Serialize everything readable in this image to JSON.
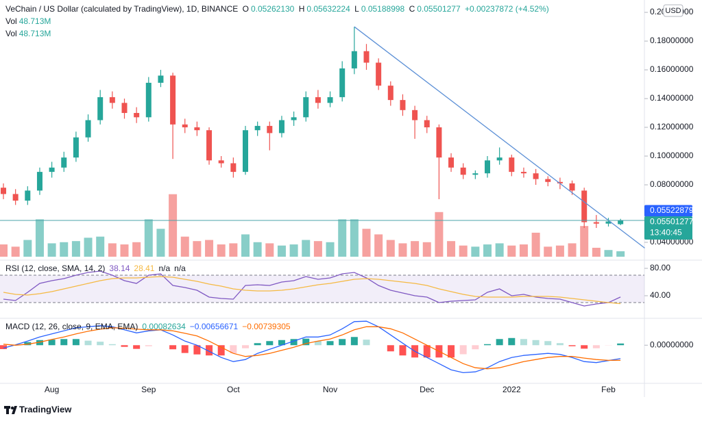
{
  "header": {
    "symbol": "VeChain / US Dollar (calculated by TradingView), 1D, BINANCE",
    "ohlc": [
      {
        "label": "O",
        "value": "0.05262130"
      },
      {
        "label": "H",
        "value": "0.05632224"
      },
      {
        "label": "L",
        "value": "0.05188998"
      },
      {
        "label": "C",
        "value": "0.05501277"
      }
    ],
    "change": "+0.00237872 (+4.52%)",
    "volume_rows": [
      {
        "label": "Vol",
        "value": "48.713M"
      },
      {
        "label": "Vol",
        "value": "48.713M"
      }
    ]
  },
  "currency": "USD",
  "footer": "TradingView",
  "chart_data": [
    {
      "type": "candlestick",
      "categories": [
        null,
        null,
        null,
        null,
        "Aug",
        null,
        null,
        null,
        null,
        null,
        null,
        null,
        "Sep",
        null,
        null,
        null,
        null,
        null,
        null,
        "Oct",
        null,
        null,
        null,
        null,
        null,
        null,
        null,
        "Nov",
        null,
        null,
        null,
        null,
        null,
        null,
        null,
        "Dec",
        null,
        null,
        null,
        null,
        null,
        null,
        "2022",
        null,
        null,
        null,
        null,
        null,
        null,
        null,
        "Feb",
        null
      ],
      "open": [
        0.078,
        0.0736,
        0.069,
        0.076,
        0.089,
        0.092,
        0.099,
        0.113,
        0.125,
        0.141,
        0.137,
        0.13,
        0.127,
        0.151,
        0.156,
        0.122,
        0.12,
        0.118,
        0.097,
        0.095,
        0.089,
        0.118,
        0.121,
        0.116,
        0.125,
        0.127,
        0.141,
        0.137,
        0.141,
        0.161,
        0.173,
        0.165,
        0.149,
        0.139,
        0.132,
        0.125,
        0.12,
        0.099,
        0.092,
        0.087,
        0.088,
        0.097,
        0.099,
        0.089,
        0.088,
        0.084,
        0.082,
        0.081,
        0.076,
        0.054,
        0.053,
        0.0526213
      ],
      "high": [
        0.081,
        0.077,
        0.079,
        0.092,
        0.096,
        0.103,
        0.117,
        0.129,
        0.146,
        0.145,
        0.14,
        0.134,
        0.155,
        0.16,
        0.158,
        0.126,
        0.124,
        0.12,
        0.1,
        0.099,
        0.121,
        0.124,
        0.124,
        0.128,
        0.131,
        0.145,
        0.146,
        0.145,
        0.166,
        0.19,
        0.178,
        0.168,
        0.152,
        0.143,
        0.135,
        0.128,
        0.122,
        0.102,
        0.095,
        0.09,
        0.1,
        0.106,
        0.101,
        0.092,
        0.091,
        0.086,
        0.085,
        0.083,
        0.078,
        0.059,
        0.057,
        0.05632224
      ],
      "low": [
        0.07,
        0.066,
        0.066,
        0.073,
        0.085,
        0.089,
        0.096,
        0.11,
        0.122,
        0.133,
        0.126,
        0.123,
        0.124,
        0.148,
        0.098,
        0.116,
        0.114,
        0.094,
        0.092,
        0.085,
        0.087,
        0.114,
        0.104,
        0.113,
        0.121,
        0.124,
        0.133,
        0.134,
        0.138,
        0.157,
        0.16,
        0.146,
        0.135,
        0.128,
        0.112,
        0.116,
        0.07,
        0.089,
        0.084,
        0.084,
        0.085,
        0.094,
        0.086,
        0.085,
        0.08,
        0.079,
        0.077,
        0.073,
        0.05,
        0.05,
        0.051,
        0.05188998
      ],
      "close": [
        0.0736,
        0.069,
        0.076,
        0.089,
        0.092,
        0.099,
        0.113,
        0.125,
        0.141,
        0.137,
        0.13,
        0.127,
        0.151,
        0.156,
        0.122,
        0.12,
        0.118,
        0.097,
        0.095,
        0.089,
        0.118,
        0.121,
        0.116,
        0.125,
        0.127,
        0.141,
        0.137,
        0.141,
        0.161,
        0.173,
        0.165,
        0.149,
        0.139,
        0.132,
        0.125,
        0.12,
        0.099,
        0.092,
        0.087,
        0.088,
        0.097,
        0.099,
        0.089,
        0.088,
        0.084,
        0.082,
        0.081,
        0.076,
        0.054,
        0.053,
        0.0545,
        0.05501277
      ],
      "up_color": "#26a69a",
      "down_color": "#ef5350",
      "ylim": [
        0.0276,
        0.2086
      ],
      "yticks": [
        {
          "value": 0.04,
          "label": "0.04000000"
        },
        {
          "value": 0.08,
          "label": "0.08000000"
        },
        {
          "value": 0.1,
          "label": "0.10000000"
        },
        {
          "value": 0.12,
          "label": "0.12000000"
        },
        {
          "value": 0.14,
          "label": "0.14000000"
        },
        {
          "value": 0.16,
          "label": "0.16000000"
        },
        {
          "value": 0.18,
          "label": "0.18000000"
        },
        {
          "value": 0.2,
          "label": "0.20000000"
        }
      ],
      "volume": {
        "values": [
          110,
          90,
          150,
          335,
          120,
          130,
          140,
          170,
          180,
          120,
          110,
          130,
          335,
          250,
          560,
          180,
          140,
          150,
          110,
          120,
          200,
          130,
          120,
          100,
          110,
          150,
          140,
          130,
          335,
          335,
          250,
          200,
          150,
          120,
          140,
          130,
          400,
          140,
          100,
          90,
          110,
          120,
          100,
          110,
          215,
          90,
          100,
          120,
          275,
          80,
          60,
          48.713
        ],
        "ylim": [
          0,
          2300
        ],
        "up_color": "#26a69a",
        "down_color": "#ef5350",
        "opacity": 0.55
      },
      "trendline": {
        "x": [
          29,
          53
        ],
        "y": [
          0.19,
          0.036
        ],
        "color": "#5b8fd6"
      },
      "price_lines": [
        {
          "value": 0.05522879,
          "label": "0.05522879",
          "color": "#2962ff",
          "line_color": "#4ba3a8"
        },
        {
          "value": 0.05501277,
          "label": "0.05501277",
          "countdown": "13:40:45",
          "color": "#26a69a"
        }
      ]
    },
    {
      "type": "line",
      "title": "RSI (12, close, SMA, 14, 2)",
      "legend_values": [
        "38.14",
        "28.41",
        "n/a",
        "n/a"
      ],
      "series": [
        {
          "color": "#7e57c2",
          "values": [
            35,
            33,
            45,
            58,
            62,
            65,
            70,
            74,
            76,
            70,
            62,
            58,
            70,
            72,
            55,
            52,
            48,
            38,
            36,
            35,
            55,
            56,
            55,
            60,
            62,
            68,
            64,
            66,
            72,
            74,
            66,
            55,
            48,
            44,
            40,
            38,
            30,
            32,
            33,
            34,
            45,
            50,
            40,
            42,
            38,
            36,
            35,
            30,
            25,
            28,
            30,
            38.14
          ]
        },
        {
          "color": "#f5b942",
          "values": [
            45,
            42,
            41,
            43,
            46,
            50,
            54,
            58,
            62,
            65,
            66,
            66,
            67,
            68,
            67,
            64,
            61,
            57,
            54,
            50,
            48,
            47,
            47,
            48,
            50,
            53,
            56,
            58,
            61,
            64,
            65,
            64,
            62,
            60,
            58,
            55,
            50,
            46,
            42,
            39,
            38,
            38,
            38,
            39,
            39,
            39,
            38,
            36,
            34,
            32,
            30,
            28.41
          ]
        }
      ],
      "ylim": [
        7,
        92
      ],
      "yticks": [
        {
          "value": 40,
          "label": "40.00"
        },
        {
          "value": 80,
          "label": "80.00"
        }
      ],
      "bands": [
        30,
        70
      ],
      "band_color": "#7e57c2"
    },
    {
      "type": "line",
      "title": "MACD (12, 26, close, 9, EMA, EMA)",
      "legend_values": [
        "0.00082634",
        "−0.00656671",
        "−0.00739305"
      ],
      "series": [
        {
          "style": "histogram",
          "color": "#26a69a",
          "colors": [
            "#26a69a",
            "#b2dfdb",
            "#ff5252",
            "#ffcdd2"
          ],
          "values": [
            -0.0019,
            0.0002,
            0.0015,
            0.0025,
            0.0027,
            0.003,
            0.003,
            0.0022,
            0.0017,
            0.0005,
            -0.0008,
            -0.0018,
            -0.0005,
            0,
            -0.002,
            -0.0038,
            -0.0045,
            -0.005,
            -0.005,
            -0.004,
            -0.0015,
            0.001,
            0.002,
            0.0025,
            0.003,
            0.0032,
            0.002,
            0.002,
            0.003,
            0.004,
            0.0027,
            0,
            -0.003,
            -0.005,
            -0.006,
            -0.006,
            -0.006,
            -0.006,
            -0.0044,
            -0.002,
            0.0005,
            0.003,
            0.0035,
            0.003,
            0.0025,
            0.002,
            0.001,
            -0.0005,
            -0.0017,
            -0.0015,
            -0.0001,
            0.00082634
          ]
        },
        {
          "color": "#2962ff",
          "values": [
            -0.0014,
            0.0002,
            0.002,
            0.004,
            0.0055,
            0.007,
            0.0085,
            0.009,
            0.0095,
            0.009,
            0.0075,
            0.006,
            0.007,
            0.0075,
            0.005,
            0.002,
            0.0,
            -0.003,
            -0.006,
            -0.008,
            -0.007,
            -0.004,
            -0.002,
            0.0,
            0.002,
            0.004,
            0.004,
            0.005,
            0.008,
            0.0115,
            0.0117,
            0.009,
            0.005,
            0.001,
            -0.003,
            -0.006,
            -0.009,
            -0.012,
            -0.0134,
            -0.013,
            -0.011,
            -0.008,
            -0.006,
            -0.005,
            -0.0045,
            -0.004,
            -0.0045,
            -0.006,
            -0.008,
            -0.0085,
            -0.0075,
            -0.00656671
          ]
        },
        {
          "color": "#ff6d00",
          "values": [
            0.0005,
            0.0,
            0.0005,
            0.0015,
            0.0028,
            0.004,
            0.0055,
            0.0068,
            0.0078,
            0.0085,
            0.0083,
            0.0078,
            0.0075,
            0.0075,
            0.007,
            0.0058,
            0.0045,
            0.002,
            -0.001,
            -0.004,
            -0.0055,
            -0.005,
            -0.004,
            -0.0025,
            -0.001,
            0.0008,
            0.002,
            0.003,
            0.005,
            0.0075,
            0.009,
            0.009,
            0.008,
            0.006,
            0.003,
            0.0,
            -0.003,
            -0.006,
            -0.009,
            -0.011,
            -0.0115,
            -0.011,
            -0.0095,
            -0.008,
            -0.007,
            -0.006,
            -0.0055,
            -0.0055,
            -0.0063,
            -0.007,
            -0.0074,
            -0.00739305
          ]
        }
      ],
      "ylim": [
        -0.0186,
        0.0131
      ],
      "yticks": [
        {
          "value": 0,
          "label": "0.00000000"
        }
      ]
    }
  ]
}
